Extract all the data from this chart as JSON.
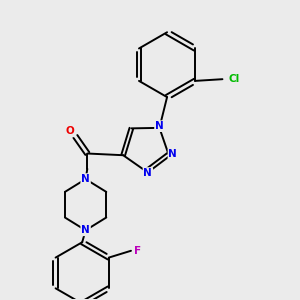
{
  "background_color": "#ebebeb",
  "bond_color": "#000000",
  "atom_colors": {
    "N": "#0000ee",
    "O": "#ee0000",
    "Cl": "#00bb00",
    "F": "#bb00bb",
    "C": "#000000"
  },
  "figsize": [
    3.0,
    3.0
  ],
  "dpi": 100,
  "lw": 1.4,
  "fontsize": 7.5
}
